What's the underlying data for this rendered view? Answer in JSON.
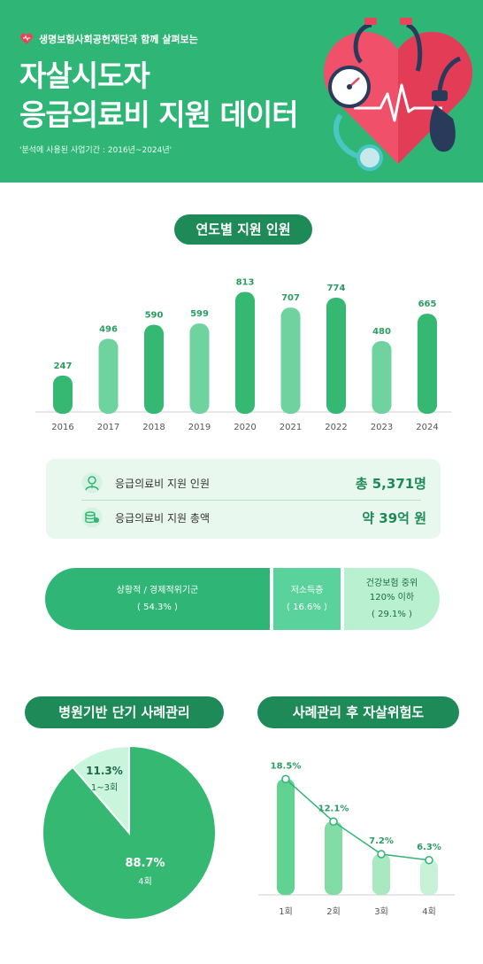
{
  "header": {
    "org_text": "생명보험사회공헌재단과 함께 살펴보는",
    "title_line1": "자살시도자",
    "title_line2": "응급의료비 지원 데이터",
    "period": "'분석에 사용된 사업기간 : 2016년~2024년'"
  },
  "sections": {
    "yearly_title": "연도별 지원 인원",
    "case_title": "병원기반 단기 사례관리",
    "risk_title": "사례관리 후 자살위험도"
  },
  "summary": {
    "people_label": "응급의료비 지원 인원",
    "people_value": "총 5,371명",
    "amount_label": "응급의료비 지원 총액",
    "amount_value": "약 39억 원"
  },
  "segments": [
    {
      "label": "상황적 / 경제적위기군",
      "value": "( 54.3% )"
    },
    {
      "label": "저소득층",
      "value": "( 16.6% )"
    },
    {
      "label": "건강보험 중위\n120% 이하",
      "value": "( 29.1% )"
    }
  ],
  "colors": {
    "brand_green": "#2fb575",
    "dark_green": "#1e8a57",
    "bar_dark": "#34b872",
    "bar_light": "#6fd3a0",
    "pie_main": "#34b872",
    "pie_small": "#c9f5dc"
  },
  "chart_data": [
    {
      "type": "bar",
      "title": "연도별 지원 인원",
      "categories": [
        "2016",
        "2017",
        "2018",
        "2019",
        "2020",
        "2021",
        "2022",
        "2023",
        "2024"
      ],
      "values": [
        247,
        496,
        590,
        599,
        813,
        707,
        774,
        480,
        665
      ],
      "ylim": [
        0,
        900
      ],
      "grid": false
    },
    {
      "type": "pie",
      "title": "병원기반 단기 사례관리",
      "slices": [
        {
          "label": "4회",
          "value": 88.7,
          "display": "88.7%"
        },
        {
          "label": "1~3회",
          "value": 11.3,
          "display": "11.3%"
        }
      ]
    },
    {
      "type": "line",
      "title": "사례관리 후 자살위험도",
      "categories": [
        "1회",
        "2회",
        "3회",
        "4회"
      ],
      "values": [
        18.5,
        12.1,
        7.2,
        6.3
      ],
      "labels": [
        "18.5%",
        "12.1%",
        "7.2%",
        "6.3%"
      ],
      "ylim": [
        0,
        20
      ],
      "grid": false
    }
  ]
}
